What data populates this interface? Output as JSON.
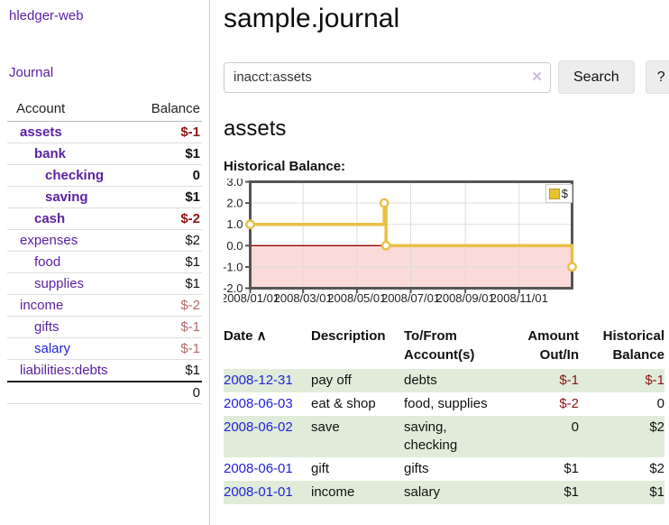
{
  "app": {
    "title": "hledger-web"
  },
  "sidebar": {
    "journal_link": "Journal",
    "accounts_table": {
      "headers": [
        "Account",
        "Balance"
      ],
      "rows": [
        {
          "name": "assets",
          "depth": 1,
          "bold": true,
          "balance": "$-1",
          "balance_style": "neg-strong"
        },
        {
          "name": "bank",
          "depth": 2,
          "bold": true,
          "balance": "$1",
          "balance_style": "pos-strong"
        },
        {
          "name": "checking",
          "depth": 3,
          "bold": true,
          "balance": "0",
          "balance_style": "pos-strong"
        },
        {
          "name": "saving",
          "depth": 3,
          "bold": true,
          "balance": "$1",
          "balance_style": "pos-strong"
        },
        {
          "name": "cash",
          "depth": 2,
          "bold": true,
          "balance": "$-2",
          "balance_style": "neg-strong"
        },
        {
          "name": "expenses",
          "depth": 1,
          "bold": false,
          "balance": "$2",
          "balance_style": "pos"
        },
        {
          "name": "food",
          "depth": 2,
          "bold": false,
          "balance": "$1",
          "balance_style": "pos"
        },
        {
          "name": "supplies",
          "depth": 2,
          "bold": false,
          "balance": "$1",
          "balance_style": "pos"
        },
        {
          "name": "income",
          "depth": 1,
          "bold": false,
          "balance": "$-2",
          "balance_style": "neg-muted"
        },
        {
          "name": "gifts",
          "depth": 2,
          "bold": false,
          "balance": "$-1",
          "balance_style": "neg-muted"
        },
        {
          "name": "salary",
          "depth": 2,
          "bold": false,
          "link_color": "blue",
          "balance": "$-1",
          "balance_style": "neg-muted"
        },
        {
          "name": "liabilities:debts",
          "depth": 1,
          "bold": false,
          "balance": "$1",
          "balance_style": "pos"
        }
      ],
      "total": "0"
    }
  },
  "header": {
    "title": "sample.journal"
  },
  "search": {
    "query": "inacct:assets",
    "clear_icon": "✕",
    "button_label": "Search",
    "help_label": "?"
  },
  "account_page": {
    "heading": "assets",
    "chart_label": "Historical Balance:"
  },
  "chart_data": {
    "type": "line",
    "title": "Historical Balance",
    "step": true,
    "series": [
      {
        "name": "$",
        "color": "#e9c048",
        "points": [
          {
            "x": "2008-01-01",
            "y": 1
          },
          {
            "x": "2008-06-01",
            "y": 2
          },
          {
            "x": "2008-06-03",
            "y": 0
          },
          {
            "x": "2008-12-31",
            "y": -1
          }
        ]
      }
    ],
    "x_range": [
      "2008-01-01",
      "2008-12-31"
    ],
    "ylim": [
      -2,
      3
    ],
    "y_ticks": [
      "3.0",
      "2.0",
      "1.0",
      "0.0",
      "-1.0",
      "-2.0"
    ],
    "x_ticks": [
      {
        "label": "2008/01/01",
        "date": "2008-01-01"
      },
      {
        "label": "2008/03/01",
        "date": "2008-03-01"
      },
      {
        "label": "2008/05/01",
        "date": "2008-05-01"
      },
      {
        "label": "2008/07/01",
        "date": "2008-07-01"
      },
      {
        "label": "2008/09/01",
        "date": "2008-09-01"
      },
      {
        "label": "2008/11/01",
        "date": "2008-11-01"
      }
    ],
    "legend": {
      "position": "top-right",
      "entries": [
        {
          "label": "$",
          "color": "#e8c12e"
        }
      ]
    },
    "grid": true,
    "negative_region_fill": "#fbdada",
    "zero_line_color": "#9a0000",
    "border_color": "#555555"
  },
  "register": {
    "sort_icon": "∧",
    "headers": [
      {
        "lines": [
          "Date"
        ],
        "align": "left",
        "sortable": true
      },
      {
        "lines": [
          "Description"
        ],
        "align": "left"
      },
      {
        "lines": [
          "To/From",
          "Account(s)"
        ],
        "align": "left"
      },
      {
        "lines": [
          "Amount",
          "Out/In"
        ],
        "align": "right"
      },
      {
        "lines": [
          "Historical",
          "Balance"
        ],
        "align": "right"
      }
    ],
    "rows": [
      {
        "date": "2008-12-31",
        "description": "pay off",
        "accounts": "debts",
        "amount": "$-1",
        "amount_neg": true,
        "balance": "$-1",
        "balance_neg": true,
        "striped": true
      },
      {
        "date": "2008-06-03",
        "description": "eat & shop",
        "accounts": "food, supplies",
        "amount": "$-2",
        "amount_neg": true,
        "balance": "0",
        "balance_neg": false,
        "striped": false
      },
      {
        "date": "2008-06-02",
        "description": "save",
        "accounts": "saving, checking",
        "amount": "0",
        "amount_neg": false,
        "balance": "$2",
        "balance_neg": false,
        "striped": true
      },
      {
        "date": "2008-06-01",
        "description": "gift",
        "accounts": "gifts",
        "amount": "$1",
        "amount_neg": false,
        "balance": "$2",
        "balance_neg": false,
        "striped": false
      },
      {
        "date": "2008-01-01",
        "description": "income",
        "accounts": "salary",
        "amount": "$1",
        "amount_neg": false,
        "balance": "$1",
        "balance_neg": false,
        "striped": true
      }
    ]
  }
}
